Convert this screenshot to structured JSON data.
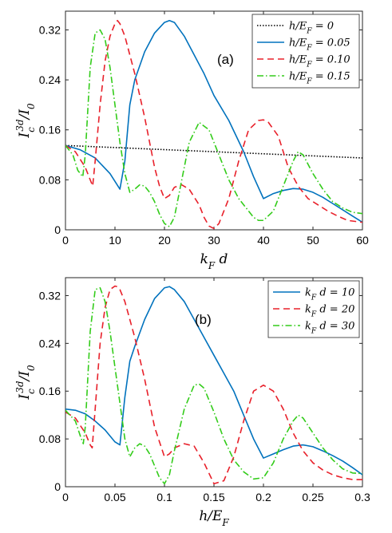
{
  "chart_data": [
    {
      "type": "line",
      "panel_label": "(a)",
      "xlabel": "k_F d",
      "ylabel": "I_c^{3d}/I_0",
      "xlim": [
        0,
        60
      ],
      "ylim": [
        0,
        0.35
      ],
      "xticks": [
        "0",
        "10",
        "20",
        "30",
        "40",
        "50",
        "60"
      ],
      "yticks": [
        "0",
        "0.08",
        "0.16",
        "0.24",
        "0.32"
      ],
      "legend_position": "top-right",
      "series": [
        {
          "name": "h/E_F = 0",
          "color": "#000000",
          "dash": "1.5,2",
          "x": [
            0,
            60
          ],
          "y": [
            0.135,
            0.115
          ]
        },
        {
          "name": "h/E_F = 0.05",
          "color": "#0072BD",
          "dash": "",
          "x": [
            0,
            3,
            6,
            9,
            11,
            12,
            13,
            14,
            16,
            18,
            20,
            21,
            22,
            24,
            26,
            28,
            30,
            33,
            36,
            38,
            40,
            42,
            44,
            46,
            48,
            50,
            52,
            54,
            56,
            58,
            60
          ],
          "y": [
            0.135,
            0.128,
            0.115,
            0.09,
            0.065,
            0.11,
            0.2,
            0.24,
            0.285,
            0.315,
            0.332,
            0.335,
            0.332,
            0.31,
            0.28,
            0.25,
            0.215,
            0.175,
            0.125,
            0.085,
            0.05,
            0.058,
            0.063,
            0.066,
            0.065,
            0.06,
            0.052,
            0.042,
            0.032,
            0.022,
            0.012
          ]
        },
        {
          "name": "h/E_F = 0.10",
          "color": "#E8202A",
          "dash": "8,5",
          "x": [
            0,
            2,
            4,
            5.5,
            6,
            7,
            8,
            9,
            10,
            10.5,
            11,
            12,
            14,
            16,
            18,
            19,
            20,
            21,
            22,
            23.5,
            25,
            27,
            28,
            29,
            30,
            31,
            33,
            35,
            37,
            39,
            40,
            41,
            43,
            45,
            47,
            49,
            51,
            53,
            55,
            57,
            60
          ],
          "y": [
            0.135,
            0.125,
            0.1,
            0.07,
            0.11,
            0.2,
            0.27,
            0.31,
            0.33,
            0.335,
            0.33,
            0.31,
            0.25,
            0.18,
            0.1,
            0.07,
            0.05,
            0.055,
            0.068,
            0.072,
            0.065,
            0.04,
            0.02,
            0.006,
            0.002,
            0.01,
            0.05,
            0.11,
            0.16,
            0.175,
            0.176,
            0.172,
            0.15,
            0.1,
            0.07,
            0.05,
            0.04,
            0.03,
            0.022,
            0.015,
            0.012
          ]
        },
        {
          "name": "h/E_F = 0.15",
          "color": "#33CC1A",
          "dash": "8,3,1.5,3",
          "x": [
            0,
            1.5,
            2.5,
            3.5,
            4,
            5,
            6,
            7,
            8,
            9,
            10,
            11,
            12,
            13,
            14,
            15,
            16,
            17,
            18,
            19,
            20,
            21,
            22,
            23,
            25,
            27,
            29,
            31,
            33,
            35,
            37,
            38,
            39,
            40,
            42,
            44,
            46,
            47,
            48,
            50,
            52,
            54,
            56,
            58,
            60
          ],
          "y": [
            0.135,
            0.12,
            0.095,
            0.085,
            0.12,
            0.26,
            0.315,
            0.32,
            0.305,
            0.26,
            0.2,
            0.14,
            0.09,
            0.06,
            0.065,
            0.072,
            0.07,
            0.06,
            0.045,
            0.025,
            0.01,
            0.005,
            0.02,
            0.06,
            0.14,
            0.172,
            0.16,
            0.12,
            0.08,
            0.05,
            0.03,
            0.02,
            0.015,
            0.015,
            0.03,
            0.07,
            0.11,
            0.125,
            0.12,
            0.09,
            0.065,
            0.045,
            0.035,
            0.028,
            0.026
          ]
        }
      ]
    },
    {
      "type": "line",
      "panel_label": "(b)",
      "xlabel": "h/E_F",
      "ylabel": "I_c^{3d}/I_0",
      "xlim": [
        0,
        0.3
      ],
      "ylim": [
        0,
        0.35
      ],
      "xticks": [
        "0",
        "0.05",
        "0.1",
        "0.15",
        "0.2",
        "0.25",
        "0.3"
      ],
      "yticks": [
        "0",
        "0.08",
        "0.16",
        "0.24",
        "0.32"
      ],
      "legend_position": "top-right",
      "series": [
        {
          "name": "k_F d = 10",
          "color": "#0072BD",
          "dash": "",
          "x": [
            0,
            0.01,
            0.02,
            0.03,
            0.04,
            0.05,
            0.055,
            0.06,
            0.065,
            0.07,
            0.08,
            0.09,
            0.1,
            0.105,
            0.11,
            0.12,
            0.13,
            0.14,
            0.15,
            0.16,
            0.17,
            0.18,
            0.19,
            0.2,
            0.21,
            0.22,
            0.23,
            0.24,
            0.25,
            0.26,
            0.27,
            0.28,
            0.29,
            0.3
          ],
          "y": [
            0.13,
            0.128,
            0.122,
            0.11,
            0.095,
            0.075,
            0.07,
            0.15,
            0.21,
            0.235,
            0.28,
            0.315,
            0.333,
            0.335,
            0.33,
            0.31,
            0.28,
            0.25,
            0.22,
            0.19,
            0.16,
            0.12,
            0.08,
            0.048,
            0.055,
            0.062,
            0.068,
            0.07,
            0.067,
            0.06,
            0.052,
            0.043,
            0.032,
            0.02
          ]
        },
        {
          "name": "k_F d = 20",
          "color": "#E8202A",
          "dash": "8,5",
          "x": [
            0,
            0.01,
            0.02,
            0.025,
            0.027,
            0.03,
            0.035,
            0.04,
            0.045,
            0.05,
            0.052,
            0.055,
            0.06,
            0.07,
            0.08,
            0.09,
            0.1,
            0.105,
            0.11,
            0.12,
            0.13,
            0.14,
            0.15,
            0.16,
            0.17,
            0.18,
            0.19,
            0.2,
            0.21,
            0.22,
            0.23,
            0.24,
            0.25,
            0.26,
            0.27,
            0.28,
            0.29,
            0.3
          ],
          "y": [
            0.125,
            0.115,
            0.09,
            0.07,
            0.065,
            0.13,
            0.24,
            0.3,
            0.33,
            0.336,
            0.335,
            0.33,
            0.31,
            0.25,
            0.18,
            0.1,
            0.05,
            0.055,
            0.065,
            0.072,
            0.068,
            0.04,
            0.005,
            0.01,
            0.05,
            0.11,
            0.16,
            0.17,
            0.16,
            0.13,
            0.09,
            0.06,
            0.04,
            0.028,
            0.02,
            0.015,
            0.012,
            0.012
          ]
        },
        {
          "name": "k_F d = 30",
          "color": "#33CC1A",
          "dash": "8,3,1.5,3",
          "x": [
            0,
            0.01,
            0.015,
            0.018,
            0.02,
            0.025,
            0.03,
            0.035,
            0.04,
            0.045,
            0.05,
            0.055,
            0.06,
            0.065,
            0.07,
            0.075,
            0.08,
            0.085,
            0.09,
            0.095,
            0.1,
            0.105,
            0.11,
            0.12,
            0.13,
            0.135,
            0.14,
            0.15,
            0.16,
            0.17,
            0.18,
            0.19,
            0.2,
            0.21,
            0.22,
            0.23,
            0.235,
            0.24,
            0.25,
            0.26,
            0.27,
            0.28,
            0.29,
            0.3
          ],
          "y": [
            0.128,
            0.11,
            0.085,
            0.072,
            0.1,
            0.26,
            0.33,
            0.333,
            0.31,
            0.26,
            0.2,
            0.14,
            0.08,
            0.05,
            0.065,
            0.072,
            0.068,
            0.055,
            0.035,
            0.015,
            0.005,
            0.02,
            0.06,
            0.13,
            0.17,
            0.172,
            0.165,
            0.125,
            0.08,
            0.045,
            0.025,
            0.013,
            0.015,
            0.04,
            0.08,
            0.11,
            0.12,
            0.115,
            0.09,
            0.065,
            0.045,
            0.03,
            0.023,
            0.022
          ]
        }
      ]
    }
  ]
}
